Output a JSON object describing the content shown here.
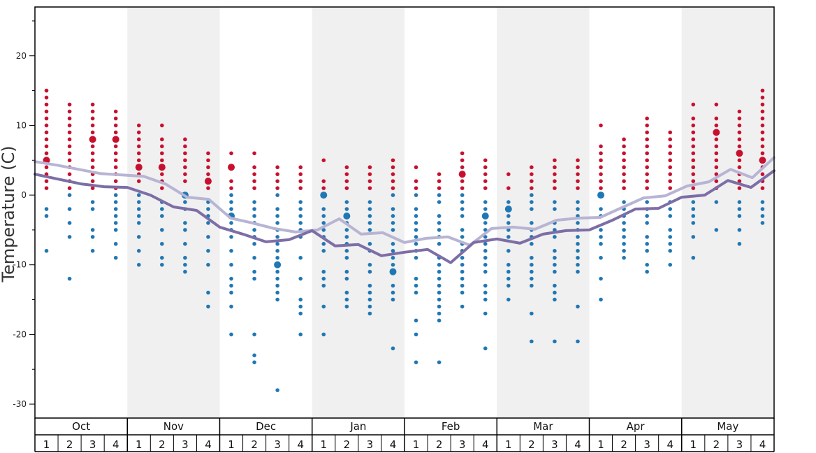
{
  "chart_data": {
    "type": "scatter",
    "ylabel": "Temperature (C)",
    "ylim": [
      -32,
      27
    ],
    "yticks": [
      20,
      10,
      0,
      -10,
      -20,
      -30
    ],
    "grid": false,
    "months": [
      "Oct",
      "Nov",
      "Dec",
      "Jan",
      "Feb",
      "Mar",
      "Apr",
      "May"
    ],
    "weeks": [
      "1",
      "2",
      "3",
      "4"
    ],
    "colors": {
      "warm": "#c8102e",
      "cold": "#1f77b4",
      "band": "#f0f0f0",
      "line_upper": "#b7b4d4",
      "line_lower": "#7d6ea6"
    },
    "upper_line": [
      4.8,
      4.3,
      3.7,
      3.1,
      2.9,
      2.7,
      1.6,
      -0.3,
      -0.6,
      -3.3,
      -4.0,
      -4.8,
      -5.3,
      -5.0,
      -3.4,
      -5.6,
      -5.4,
      -6.8,
      -6.2,
      -6.0,
      -7.2,
      -4.8,
      -4.6,
      -4.9,
      -3.6,
      -3.3,
      -3.2,
      -1.8,
      -0.4,
      -0.1,
      1.3,
      1.9,
      3.7,
      2.5,
      5.4
    ],
    "lower_line": [
      3.0,
      2.3,
      1.6,
      1.2,
      1.1,
      0.0,
      -1.7,
      -2.2,
      -4.6,
      -5.6,
      -6.7,
      -6.4,
      -5.1,
      -7.3,
      -7.1,
      -8.7,
      -8.2,
      -7.8,
      -9.7,
      -6.8,
      -6.3,
      -6.9,
      -5.6,
      -5.1,
      -5.0,
      -3.6,
      -2.0,
      -1.9,
      -0.3,
      0.0,
      2.1,
      1.1,
      3.5
    ],
    "scatter_columns": [
      {
        "warm": [
          15,
          14,
          13,
          12,
          11,
          10,
          9,
          8,
          7,
          6,
          5,
          4,
          3,
          2,
          1
        ],
        "warm_big": [
          5
        ],
        "cold": [
          -2,
          -3,
          -8
        ],
        "cold_big": []
      },
      {
        "warm": [
          13,
          12,
          11,
          10,
          9,
          8,
          7,
          6,
          5,
          4,
          3,
          2,
          1
        ],
        "warm_big": [],
        "cold": [
          0,
          -2,
          -4,
          -6,
          -12
        ],
        "cold_big": []
      },
      {
        "warm": [
          13,
          12,
          11,
          10,
          9,
          8,
          7,
          6,
          5,
          4,
          3,
          2,
          1
        ],
        "warm_big": [
          8
        ],
        "cold": [
          -1,
          -2,
          -5,
          -6,
          -8
        ],
        "cold_big": []
      },
      {
        "warm": [
          12,
          11,
          10,
          9,
          8,
          7,
          6,
          5,
          4,
          3,
          2,
          1
        ],
        "warm_big": [
          8
        ],
        "cold": [
          0,
          -1,
          -2,
          -3,
          -4,
          -5,
          -7,
          -9
        ],
        "cold_big": []
      },
      {
        "warm": [
          10,
          9,
          8,
          7,
          6,
          5,
          4,
          3,
          2
        ],
        "warm_big": [
          4
        ],
        "cold": [
          0,
          -1,
          -2,
          -3,
          -4,
          -6,
          -8,
          -10
        ],
        "cold_big": []
      },
      {
        "warm": [
          10,
          8,
          7,
          6,
          5,
          4,
          3,
          2,
          1
        ],
        "warm_big": [
          4
        ],
        "cold": [
          -1,
          -2,
          -3,
          -5,
          -7,
          -9,
          -10
        ],
        "cold_big": []
      },
      {
        "warm": [
          8,
          7,
          6,
          5,
          4,
          3,
          2
        ],
        "warm_big": [],
        "cold": [
          -1,
          -2,
          -4,
          -5,
          -7,
          -9,
          -10,
          -11
        ],
        "cold_big": [
          0
        ]
      },
      {
        "warm": [
          6,
          5,
          4,
          3,
          2,
          1
        ],
        "warm_big": [
          2
        ],
        "cold": [
          -1,
          -2,
          -3,
          -4,
          -6,
          -8,
          -10,
          -14,
          -16
        ],
        "cold_big": []
      },
      {
        "warm": [
          6,
          4,
          2,
          1
        ],
        "warm_big": [
          4
        ],
        "cold": [
          0,
          -1,
          -2,
          -3,
          -4,
          -5,
          -6,
          -8,
          -10,
          -12,
          -13,
          -14,
          -16,
          -20
        ],
        "cold_big": [
          -3
        ]
      },
      {
        "warm": [
          6,
          4,
          3,
          2,
          1
        ],
        "warm_big": [],
        "cold": [
          -1,
          -2,
          -3,
          -4,
          -5,
          -6,
          -7,
          -9,
          -11,
          -12,
          -20,
          -23,
          -24
        ],
        "cold_big": []
      },
      {
        "warm": [
          4,
          3,
          2,
          1
        ],
        "warm_big": [],
        "cold": [
          0,
          -2,
          -3,
          -4,
          -5,
          -6,
          -7,
          -8,
          -9,
          -11,
          -12,
          -13,
          -14,
          -15,
          -28
        ],
        "cold_big": [
          -10
        ]
      },
      {
        "warm": [
          4,
          3,
          2,
          1
        ],
        "warm_big": [],
        "cold": [
          -1,
          -2,
          -3,
          -4,
          -5,
          -6,
          -9,
          -12,
          -15,
          -16,
          -17,
          -20
        ],
        "cold_big": []
      },
      {
        "warm": [
          5,
          2,
          1
        ],
        "warm_big": [],
        "cold": [
          -2,
          -3,
          -4,
          -5,
          -6,
          -7,
          -8,
          -11,
          -12,
          -13,
          -16,
          -20
        ],
        "cold_big": [
          0
        ]
      },
      {
        "warm": [
          4,
          3,
          2,
          1
        ],
        "warm_big": [],
        "cold": [
          -1,
          -2,
          -4,
          -5,
          -6,
          -7,
          -8,
          -9,
          -11,
          -12,
          -14,
          -15,
          -16
        ],
        "cold_big": [
          -3
        ]
      },
      {
        "warm": [
          4,
          3,
          2,
          1
        ],
        "warm_big": [],
        "cold": [
          -1,
          -2,
          -3,
          -4,
          -5,
          -7,
          -8,
          -10,
          -11,
          -13,
          -14,
          -15,
          -16,
          -17
        ],
        "cold_big": []
      },
      {
        "warm": [
          5,
          4,
          3,
          2,
          1
        ],
        "warm_big": [],
        "cold": [
          0,
          -2,
          -3,
          -4,
          -5,
          -7,
          -8,
          -9,
          -10,
          -13,
          -14,
          -15,
          -22
        ],
        "cold_big": [
          -11
        ]
      },
      {
        "warm": [
          4,
          2,
          1
        ],
        "warm_big": [],
        "cold": [
          0,
          -2,
          -3,
          -4,
          -5,
          -6,
          -7,
          -8,
          -9,
          -12,
          -13,
          -14,
          -18,
          -20,
          -24
        ],
        "cold_big": []
      },
      {
        "warm": [
          3,
          2,
          1
        ],
        "warm_big": [],
        "cold": [
          0,
          -1,
          -3,
          -4,
          -5,
          -6,
          -7,
          -9,
          -10,
          -11,
          -12,
          -13,
          -14,
          -15,
          -16,
          -17,
          -18,
          -24
        ],
        "cold_big": []
      },
      {
        "warm": [
          6,
          5,
          4,
          2,
          1
        ],
        "warm_big": [
          3
        ],
        "cold": [
          0,
          -1,
          -2,
          -3,
          -5,
          -6,
          -7,
          -8,
          -9,
          -10,
          -11,
          -12,
          -13,
          -14,
          -16
        ],
        "cold_big": []
      },
      {
        "warm": [
          5,
          4,
          3,
          2,
          1
        ],
        "warm_big": [],
        "cold": [
          -1,
          -2,
          -4,
          -5,
          -6,
          -7,
          -8,
          -9,
          -10,
          -11,
          -13,
          -14,
          -15,
          -17,
          -22
        ],
        "cold_big": [
          -3
        ]
      },
      {
        "warm": [
          3,
          1
        ],
        "warm_big": [],
        "cold": [
          -1,
          -2,
          -3,
          -4,
          -5,
          -6,
          -8,
          -10,
          -11,
          -12,
          -13,
          -15
        ],
        "cold_big": [
          -2
        ]
      },
      {
        "warm": [
          4,
          3,
          2,
          1
        ],
        "warm_big": [],
        "cold": [
          0,
          -1,
          -2,
          -4,
          -5,
          -6,
          -7,
          -9,
          -10,
          -11,
          -12,
          -13,
          -17,
          -21
        ],
        "cold_big": []
      },
      {
        "warm": [
          5,
          4,
          3,
          2,
          1
        ],
        "warm_big": [],
        "cold": [
          -1,
          -2,
          -4,
          -5,
          -6,
          -8,
          -9,
          -10,
          -11,
          -13,
          -14,
          -15,
          -21
        ],
        "cold_big": []
      },
      {
        "warm": [
          5,
          4,
          3,
          2,
          1
        ],
        "warm_big": [],
        "cold": [
          -1,
          -2,
          -3,
          -4,
          -5,
          -6,
          -7,
          -8,
          -9,
          -10,
          -11,
          -16,
          -21
        ],
        "cold_big": []
      },
      {
        "warm": [
          10,
          7,
          6,
          5,
          4,
          3,
          2,
          1
        ],
        "warm_big": [],
        "cold": [
          -2,
          -3,
          -5,
          -6,
          -7,
          -9,
          -12,
          -15
        ],
        "cold_big": [
          0
        ]
      },
      {
        "warm": [
          8,
          7,
          6,
          5,
          4,
          3,
          2,
          1
        ],
        "warm_big": [],
        "cold": [
          -1,
          -2,
          -3,
          -4,
          -5,
          -6,
          -7,
          -8,
          -9
        ],
        "cold_big": []
      },
      {
        "warm": [
          11,
          10,
          9,
          8,
          7,
          6,
          5,
          4,
          3,
          2,
          1
        ],
        "warm_big": [],
        "cold": [
          -1,
          -2,
          -3,
          -4,
          -6,
          -7,
          -8,
          -10,
          -11
        ],
        "cold_big": []
      },
      {
        "warm": [
          9,
          8,
          7,
          6,
          5,
          4,
          3,
          2,
          1
        ],
        "warm_big": [],
        "cold": [
          -1,
          -2,
          -3,
          -5,
          -6,
          -7,
          -8,
          -10
        ],
        "cold_big": []
      },
      {
        "warm": [
          13,
          11,
          10,
          9,
          8,
          7,
          6,
          5,
          4,
          3,
          2,
          1
        ],
        "warm_big": [],
        "cold": [
          -1,
          -2,
          -3,
          -4,
          -6,
          -9
        ],
        "cold_big": []
      },
      {
        "warm": [
          13,
          11,
          10,
          9,
          8,
          7,
          6,
          5,
          4,
          3,
          2,
          1
        ],
        "warm_big": [
          9
        ],
        "cold": [
          -1,
          -5
        ],
        "cold_big": []
      },
      {
        "warm": [
          12,
          11,
          10,
          9,
          8,
          7,
          6,
          5,
          4,
          3,
          2,
          1
        ],
        "warm_big": [
          6
        ],
        "cold": [
          -1,
          -2,
          -3,
          -5,
          -7
        ],
        "cold_big": []
      },
      {
        "warm": [
          15,
          14,
          13,
          12,
          11,
          10,
          9,
          8,
          7,
          6,
          5,
          4,
          3,
          2,
          1
        ],
        "warm_big": [
          5
        ],
        "cold": [
          -1,
          -2,
          -3,
          -4
        ],
        "cold_big": []
      }
    ]
  }
}
